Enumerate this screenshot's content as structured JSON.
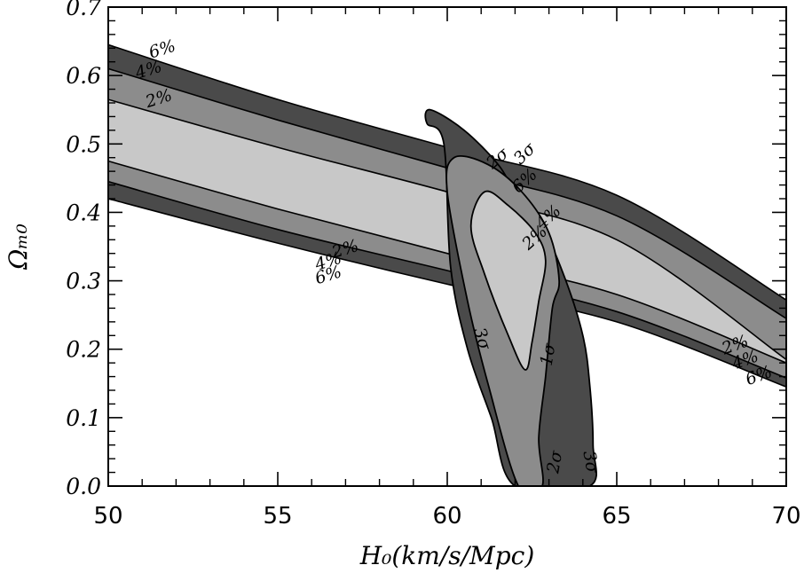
{
  "chart_data": {
    "type": "contour",
    "title": "",
    "xlabel": "H₀(km/s/Mpc)",
    "ylabel": "Ωₘ₀",
    "xlim": [
      50,
      70
    ],
    "ylim": [
      0.0,
      0.7
    ],
    "x_ticks": [
      50,
      55,
      60,
      65,
      70
    ],
    "x_tick_labels": [
      "50",
      "55",
      "60",
      "65",
      "70"
    ],
    "y_ticks": [
      0.0,
      0.1,
      0.2,
      0.3,
      0.4,
      0.5,
      0.6,
      0.7
    ],
    "y_tick_labels": [
      "0.0",
      "0.1",
      "0.2",
      "0.3",
      "0.4",
      "0.5",
      "0.6",
      "0.7"
    ],
    "grid": false,
    "colors": {
      "light": "#c8c8c8",
      "mid": "#8c8c8c",
      "dark": "#4a4a4a",
      "line": "#000000"
    },
    "bands": [
      {
        "level": "2%",
        "fill": "light",
        "upper": {
          "x": [
            50,
            55,
            60,
            65,
            70
          ],
          "y": [
            0.565,
            0.495,
            0.43,
            0.36,
            0.185
          ]
        },
        "lower": {
          "x": [
            50,
            55,
            60,
            65,
            70
          ],
          "y": [
            0.475,
            0.405,
            0.34,
            0.28,
            0.18
          ]
        }
      },
      {
        "level": "4%",
        "fill": "mid",
        "upper": {
          "x": [
            50,
            55,
            60,
            65,
            70
          ],
          "y": [
            0.61,
            0.535,
            0.465,
            0.395,
            0.245
          ]
        },
        "lower": {
          "x": [
            50,
            55,
            60,
            65,
            70
          ],
          "y": [
            0.445,
            0.375,
            0.315,
            0.255,
            0.158
          ]
        }
      },
      {
        "level": "6%",
        "fill": "dark",
        "upper": {
          "x": [
            50,
            55,
            60,
            65,
            70
          ],
          "y": [
            0.645,
            0.565,
            0.495,
            0.425,
            0.272
          ]
        },
        "lower": {
          "x": [
            50,
            55,
            60,
            65,
            70
          ],
          "y": [
            0.42,
            0.355,
            0.295,
            0.24,
            0.145
          ]
        }
      }
    ],
    "confidence_regions": [
      {
        "level": "3σ",
        "fill": "dark",
        "x": [
          59.9,
          59.4,
          59.5,
          60.5,
          61.5,
          62.0,
          62.8,
          63.5,
          64.0,
          64.2,
          64.3,
          64.2,
          62.0,
          61.3,
          60.6,
          60.1,
          59.9
        ],
        "y": [
          0.5,
          0.53,
          0.55,
          0.52,
          0.47,
          0.43,
          0.38,
          0.3,
          0.22,
          0.15,
          0.06,
          0.0,
          0.0,
          0.1,
          0.2,
          0.32,
          0.5
        ]
      },
      {
        "level": "2σ",
        "fill": "mid",
        "x": [
          60.0,
          60.2,
          61.2,
          62.2,
          63.0,
          63.3,
          63.1,
          62.9,
          62.7,
          62.8,
          62.1,
          61.2,
          60.6,
          60.0
        ],
        "y": [
          0.43,
          0.48,
          0.47,
          0.43,
          0.37,
          0.3,
          0.26,
          0.16,
          0.07,
          0.0,
          0.0,
          0.15,
          0.27,
          0.43
        ]
      },
      {
        "level": "1σ",
        "fill": "light",
        "x": [
          60.7,
          61.1,
          61.8,
          62.6,
          62.9,
          62.7,
          62.5,
          62.3,
          61.8,
          61.1,
          60.7
        ],
        "y": [
          0.38,
          0.43,
          0.41,
          0.37,
          0.33,
          0.27,
          0.21,
          0.17,
          0.22,
          0.31,
          0.38
        ]
      }
    ],
    "annotations": [
      {
        "text": "6%",
        "x": 51.6,
        "y": 0.637,
        "rot": -17
      },
      {
        "text": "4%",
        "x": 51.2,
        "y": 0.607,
        "rot": -17
      },
      {
        "text": "2%",
        "x": 51.5,
        "y": 0.565,
        "rot": -17
      },
      {
        "text": "2%",
        "x": 57.0,
        "y": 0.345,
        "rot": -17
      },
      {
        "text": "4%",
        "x": 56.5,
        "y": 0.327,
        "rot": -17
      },
      {
        "text": "6%",
        "x": 56.5,
        "y": 0.307,
        "rot": -17
      },
      {
        "text": "3σ",
        "x": 62.3,
        "y": 0.485,
        "rot": -45
      },
      {
        "text": "2σ",
        "x": 61.5,
        "y": 0.478,
        "rot": -40
      },
      {
        "text": "6%",
        "x": 62.3,
        "y": 0.445,
        "rot": -42
      },
      {
        "text": "4%",
        "x": 63.0,
        "y": 0.392,
        "rot": -42
      },
      {
        "text": "2%",
        "x": 62.6,
        "y": 0.362,
        "rot": -42
      },
      {
        "text": "3σ",
        "x": 61.0,
        "y": 0.215,
        "rot": 72
      },
      {
        "text": "1σ",
        "x": 63.0,
        "y": 0.192,
        "rot": -80
      },
      {
        "text": "2σ",
        "x": 63.2,
        "y": 0.035,
        "rot": -80
      },
      {
        "text": "3σ",
        "x": 64.2,
        "y": 0.035,
        "rot": 80
      },
      {
        "text": "2%",
        "x": 68.5,
        "y": 0.205,
        "rot": -20
      },
      {
        "text": "4%",
        "x": 68.8,
        "y": 0.183,
        "rot": -20
      },
      {
        "text": "6%",
        "x": 69.2,
        "y": 0.16,
        "rot": -20
      }
    ]
  }
}
